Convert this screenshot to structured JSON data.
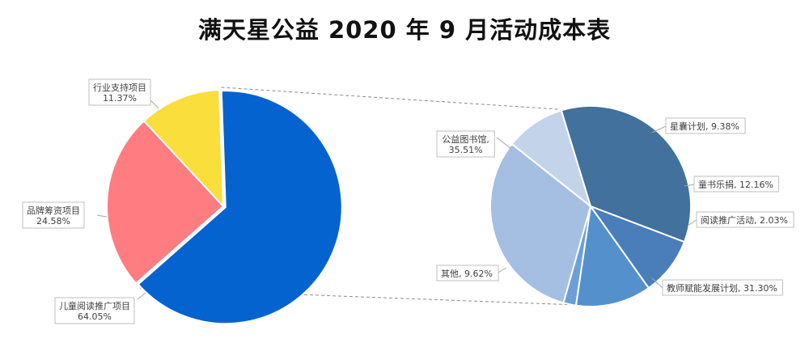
{
  "chart_data": [
    {
      "type": "pie",
      "title": "满天星公益 2020 年 9 月活动成本表",
      "categories": [
        "儿童阅读推广项目",
        "品牌筹资项目",
        "行业支持项目"
      ],
      "values": [
        64.05,
        24.58,
        11.37
      ],
      "value_labels": [
        "64.05%",
        "24.58%",
        "11.37%"
      ],
      "colors": [
        "#0563CF",
        "#FF7C80",
        "#F9DE3C"
      ],
      "exploded_category": "儿童阅读推广项目"
    },
    {
      "type": "pie",
      "title": "",
      "categories": [
        "公益图书馆",
        "星囊计划",
        "童书乐捐",
        "阅读推广活动",
        "教师赋能发展计划",
        "其他"
      ],
      "values": [
        35.51,
        9.38,
        12.16,
        2.03,
        31.3,
        9.62
      ],
      "value_labels": [
        "35.51%",
        "9.38%",
        "12.16%",
        "2.03%",
        "31.30%",
        "9.62%"
      ],
      "colors": [
        "#41719C",
        "#4A7EBB",
        "#5491CC",
        "#6C9FD6",
        "#A4BFE2",
        "#C3D3EA"
      ],
      "breakdown_of": "儿童阅读推广项目"
    }
  ]
}
